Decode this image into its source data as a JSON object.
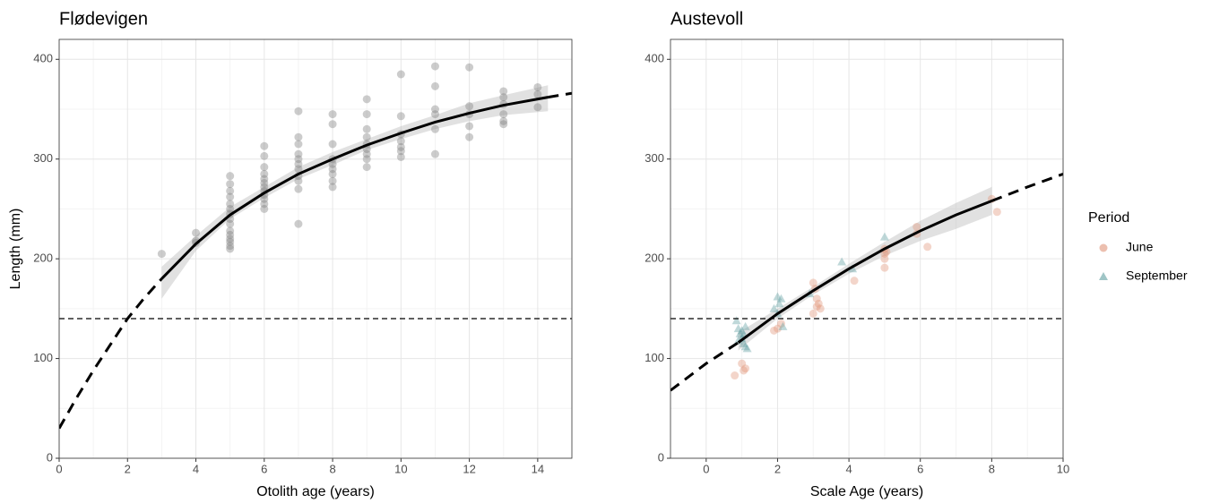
{
  "chart_data": [
    {
      "type": "scatter",
      "title": "Flødevigen",
      "x_label": "Otolith age (years)",
      "y_label": "Length (mm)",
      "xlim": [
        0,
        15
      ],
      "ylim": [
        0,
        420
      ],
      "xticks": [
        0,
        2,
        4,
        6,
        8,
        10,
        12,
        14
      ],
      "yticks": [
        0,
        100,
        200,
        300,
        400
      ],
      "grid": true,
      "hline": 140,
      "series": [
        {
          "kind": "band",
          "color": "#bdbdbd",
          "x": [
            3,
            4,
            5,
            6,
            7,
            8,
            9,
            10,
            11,
            12,
            13,
            14.3
          ],
          "lower": [
            160,
            208,
            240,
            261,
            280,
            294,
            309,
            320,
            330,
            338,
            344,
            348
          ],
          "upper": [
            192,
            223,
            252,
            272,
            292,
            307,
            320,
            333,
            344,
            356,
            364,
            374
          ]
        },
        {
          "kind": "points",
          "shape": "circle",
          "color": "#7f7f7f",
          "x": [
            3,
            4,
            4,
            4,
            5,
            5,
            5,
            5,
            5,
            5,
            5,
            5,
            5,
            5,
            5,
            5,
            5,
            5,
            5,
            6,
            6,
            6,
            6,
            6,
            6,
            6,
            6,
            6,
            6,
            6,
            6,
            7,
            7,
            7,
            7,
            7,
            7,
            7,
            7,
            7,
            7,
            7,
            8,
            8,
            8,
            8,
            8,
            8,
            8,
            8,
            8,
            9,
            9,
            9,
            9,
            9,
            9,
            9,
            9,
            9,
            10,
            10,
            10,
            10,
            10,
            10,
            10,
            11,
            11,
            11,
            11,
            11,
            11,
            12,
            12,
            12,
            12,
            12,
            13,
            13,
            13,
            13,
            13,
            13,
            14,
            14,
            14
          ],
          "values": [
            205,
            226,
            218,
            216,
            283,
            275,
            268,
            262,
            255,
            250,
            245,
            240,
            235,
            228,
            224,
            220,
            217,
            213,
            210,
            313,
            303,
            292,
            285,
            280,
            276,
            272,
            268,
            264,
            260,
            255,
            250,
            348,
            322,
            315,
            305,
            300,
            295,
            290,
            283,
            278,
            270,
            235,
            345,
            335,
            315,
            300,
            295,
            290,
            285,
            278,
            272,
            360,
            345,
            330,
            322,
            315,
            310,
            305,
            300,
            292,
            385,
            343,
            325,
            318,
            312,
            308,
            302,
            393,
            373,
            350,
            345,
            330,
            305,
            392,
            353,
            345,
            333,
            322,
            368,
            362,
            355,
            345,
            338,
            335,
            372,
            365,
            352
          ]
        },
        {
          "kind": "line",
          "dash": true,
          "color": "#000000",
          "x": [
            0,
            0.5,
            1,
            1.5,
            2,
            2.5,
            3
          ],
          "values": [
            30,
            60,
            88,
            114,
            140,
            161,
            180
          ]
        },
        {
          "kind": "line",
          "dash": false,
          "color": "#000000",
          "x": [
            3,
            4,
            5,
            6,
            7,
            8,
            9,
            10,
            11,
            12,
            13,
            14.3
          ],
          "values": [
            180,
            215,
            244,
            266,
            285,
            300,
            314,
            326,
            337,
            346,
            354,
            362
          ]
        },
        {
          "kind": "line",
          "dash": true,
          "color": "#000000",
          "x": [
            14.3,
            15
          ],
          "values": [
            362,
            366
          ]
        }
      ]
    },
    {
      "type": "scatter",
      "title": "Austevoll",
      "x_label": "Scale Age (years)",
      "xlim": [
        -1,
        10
      ],
      "ylim": [
        0,
        420
      ],
      "xticks": [
        0,
        2,
        4,
        6,
        8,
        10
      ],
      "yticks": [
        0,
        100,
        200,
        300,
        400
      ],
      "grid": true,
      "hline": 140,
      "legend_title": "Period",
      "series": [
        {
          "kind": "band",
          "color": "#bdbdbd",
          "x": [
            0.9,
            2,
            3,
            4,
            5,
            6,
            7,
            8
          ],
          "lower": [
            108,
            140,
            164,
            185,
            203,
            218,
            230,
            244
          ],
          "upper": [
            126,
            150,
            172,
            195,
            217,
            238,
            256,
            272
          ]
        },
        {
          "kind": "points",
          "name": "June",
          "shape": "circle",
          "color": "#e0957a",
          "x": [
            0.8,
            1,
            1.05,
            1.1,
            1.9,
            2,
            2.1,
            3,
            3.05,
            3.1,
            3.15,
            3.2,
            3,
            3.1,
            4.15,
            5,
            5,
            5,
            5,
            5.05,
            5.9,
            5.9,
            6.2,
            8,
            8.15
          ],
          "values": [
            83,
            95,
            88,
            90,
            128,
            130,
            135,
            176,
            170,
            160,
            155,
            150,
            145,
            152,
            178,
            210,
            205,
            200,
            191,
            207,
            232,
            225,
            212,
            260,
            247
          ]
        },
        {
          "kind": "points",
          "name": "September",
          "shape": "triangle",
          "color": "#5f9ea0",
          "x": [
            0.85,
            0.9,
            0.95,
            1,
            1.05,
            1.1,
            1,
            1.1,
            0.9,
            1.05,
            1.15,
            1.9,
            2,
            2.05,
            2.1,
            2,
            2.15,
            2.9,
            3.8,
            4.1,
            5
          ],
          "values": [
            138,
            130,
            125,
            120,
            115,
            112,
            128,
            132,
            118,
            124,
            110,
            150,
            162,
            155,
            160,
            145,
            132,
            165,
            197,
            190,
            222
          ]
        },
        {
          "kind": "line",
          "dash": true,
          "color": "#000000",
          "x": [
            -1,
            0,
            0.9
          ],
          "values": [
            68,
            95,
            116
          ]
        },
        {
          "kind": "line",
          "dash": false,
          "color": "#000000",
          "x": [
            0.9,
            2,
            3,
            4,
            5,
            6,
            7,
            8
          ],
          "values": [
            116,
            145,
            168,
            190,
            210,
            228,
            244,
            258
          ]
        },
        {
          "kind": "line",
          "dash": true,
          "color": "#000000",
          "x": [
            8,
            9,
            10
          ],
          "values": [
            258,
            272,
            285
          ]
        }
      ]
    }
  ]
}
